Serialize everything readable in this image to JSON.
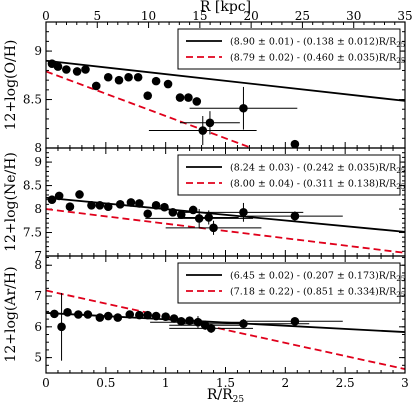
{
  "figure": {
    "top_axis_label": "R [kpc]",
    "top_axis_ticks": [
      "0",
      "5",
      "10",
      "15",
      "20",
      "25",
      "30",
      "35"
    ],
    "top_axis_range": [
      0,
      35
    ],
    "xlabel": "R/R25",
    "xlabel_main": "R/R",
    "xlabel_sub": "25"
  },
  "chart_data": [
    {
      "type": "scatter",
      "ylabel": "12+log(O/H)",
      "xlim": [
        0,
        3
      ],
      "ylim": [
        8.0,
        9.3
      ],
      "yticks": [
        "8",
        "8.5",
        "9"
      ],
      "x_ticks_shown": false,
      "grid": false,
      "legend_placement": "top-right",
      "points": [
        {
          "x": 0.05,
          "y": 8.87
        },
        {
          "x": 0.1,
          "y": 8.84
        },
        {
          "x": 0.17,
          "y": 8.81
        },
        {
          "x": 0.26,
          "y": 8.79
        },
        {
          "x": 0.33,
          "y": 8.81
        },
        {
          "x": 0.42,
          "y": 8.64
        },
        {
          "x": 0.52,
          "y": 8.73
        },
        {
          "x": 0.61,
          "y": 8.7
        },
        {
          "x": 0.69,
          "y": 8.73
        },
        {
          "x": 0.77,
          "y": 8.73
        },
        {
          "x": 0.85,
          "y": 8.54
        },
        {
          "x": 0.92,
          "y": 8.69
        },
        {
          "x": 1.02,
          "y": 8.66
        },
        {
          "x": 1.12,
          "y": 8.52
        },
        {
          "x": 1.19,
          "y": 8.52
        },
        {
          "x": 1.26,
          "y": 8.48
        },
        {
          "x": 1.31,
          "y": 8.18,
          "xerr": 0.45,
          "yerr": 0.15
        },
        {
          "x": 1.37,
          "y": 8.26,
          "xerr": 0.25,
          "yerr": 0.12
        },
        {
          "x": 1.65,
          "y": 8.41,
          "xerr": 0.45,
          "yerr": 0.22
        },
        {
          "x": 2.08,
          "y": 8.04
        }
      ],
      "fits": [
        {
          "style": "solid",
          "color": "#000000",
          "intercept": 8.9,
          "slope": -0.138,
          "label": "(8.90 ± 0.01) - (0.138 ± 0.012)R/R",
          "label_sub": "25"
        },
        {
          "style": "dashed",
          "color": "#e0001b",
          "intercept": 8.79,
          "slope": -0.46,
          "label": "(8.79 ± 0.02) - (0.460 ± 0.035)R/R",
          "label_sub": "25"
        }
      ]
    },
    {
      "type": "scatter",
      "ylabel": "12+log(Ne/H)",
      "xlim": [
        0,
        3
      ],
      "ylim": [
        7.0,
        9.3
      ],
      "yticks": [
        "7",
        "7.5",
        "8",
        "8.5",
        "9"
      ],
      "x_ticks_shown": false,
      "grid": false,
      "legend_placement": "top-right",
      "points": [
        {
          "x": 0.05,
          "y": 8.2
        },
        {
          "x": 0.11,
          "y": 8.28
        },
        {
          "x": 0.2,
          "y": 8.05
        },
        {
          "x": 0.28,
          "y": 8.31
        },
        {
          "x": 0.38,
          "y": 8.08
        },
        {
          "x": 0.45,
          "y": 8.08
        },
        {
          "x": 0.52,
          "y": 8.05
        },
        {
          "x": 0.62,
          "y": 8.1
        },
        {
          "x": 0.71,
          "y": 8.14
        },
        {
          "x": 0.78,
          "y": 8.12
        },
        {
          "x": 0.85,
          "y": 7.9
        },
        {
          "x": 0.92,
          "y": 8.08
        },
        {
          "x": 0.99,
          "y": 8.04
        },
        {
          "x": 1.06,
          "y": 7.93
        },
        {
          "x": 1.13,
          "y": 7.88
        },
        {
          "x": 1.23,
          "y": 7.98
        },
        {
          "x": 1.28,
          "y": 7.8,
          "xerr": 0.45,
          "yerr": 0.2
        },
        {
          "x": 1.36,
          "y": 7.82,
          "xerr": 0.25,
          "yerr": 0.15
        },
        {
          "x": 1.4,
          "y": 7.6,
          "xerr": 0.4,
          "yerr": 0.15
        },
        {
          "x": 1.65,
          "y": 7.93,
          "xerr": 0.5,
          "yerr": 0.2
        },
        {
          "x": 2.08,
          "y": 7.85,
          "xerr": 0.4,
          "yerr": 0.1
        }
      ],
      "fits": [
        {
          "style": "solid",
          "color": "#000000",
          "intercept": 8.24,
          "slope": -0.242,
          "label": "(8.24 ± 0.03) - (0.242 ± 0.035)R/R",
          "label_sub": "25"
        },
        {
          "style": "dashed",
          "color": "#e0001b",
          "intercept": 8.0,
          "slope": -0.311,
          "label": "(8.00 ± 0.04) - (0.311 ± 0.138)R/R",
          "label_sub": "25"
        }
      ]
    },
    {
      "type": "scatter",
      "ylabel": "12+log(Ar/H)",
      "xlim": [
        0,
        3
      ],
      "xticks": [
        "0",
        "0.5",
        "1",
        "1.5",
        "2",
        "2.5",
        "3"
      ],
      "ylim": [
        4.5,
        8.3
      ],
      "yticks": [
        "5",
        "6",
        "7",
        "8"
      ],
      "x_ticks_shown": true,
      "grid": false,
      "legend_placement": "top-right",
      "points": [
        {
          "x": 0.07,
          "y": 6.42
        },
        {
          "x": 0.13,
          "y": 6.0,
          "yerr": 1.1
        },
        {
          "x": 0.18,
          "y": 6.47
        },
        {
          "x": 0.27,
          "y": 6.4
        },
        {
          "x": 0.35,
          "y": 6.4
        },
        {
          "x": 0.45,
          "y": 6.3
        },
        {
          "x": 0.52,
          "y": 6.35
        },
        {
          "x": 0.6,
          "y": 6.3
        },
        {
          "x": 0.7,
          "y": 6.4
        },
        {
          "x": 0.78,
          "y": 6.38
        },
        {
          "x": 0.85,
          "y": 6.38
        },
        {
          "x": 0.92,
          "y": 6.35
        },
        {
          "x": 1.0,
          "y": 6.33
        },
        {
          "x": 1.07,
          "y": 6.27
        },
        {
          "x": 1.13,
          "y": 6.18
        },
        {
          "x": 1.2,
          "y": 6.2
        },
        {
          "x": 1.27,
          "y": 6.15,
          "xerr": 0.4,
          "yerr": 0.2
        },
        {
          "x": 1.33,
          "y": 6.05,
          "xerr": 0.3,
          "yerr": 0.15
        },
        {
          "x": 1.38,
          "y": 5.95,
          "xerr": 0.35,
          "yerr": 0.15
        },
        {
          "x": 1.65,
          "y": 6.1,
          "xerr": 0.55,
          "yerr": 0.15
        },
        {
          "x": 2.08,
          "y": 6.18,
          "xerr": 0.4,
          "yerr": 0.1
        }
      ],
      "fits": [
        {
          "style": "solid",
          "color": "#000000",
          "intercept": 6.45,
          "slope": -0.207,
          "label": "(6.45 ± 0.02) - (0.207 ± 0.173)R/R",
          "label_sub": "25"
        },
        {
          "style": "dashed",
          "color": "#e0001b",
          "intercept": 7.18,
          "slope": -0.851,
          "label": "(7.18 ± 0.22) - (0.851 ± 0.334)R/R",
          "label_sub": "25"
        }
      ]
    }
  ]
}
